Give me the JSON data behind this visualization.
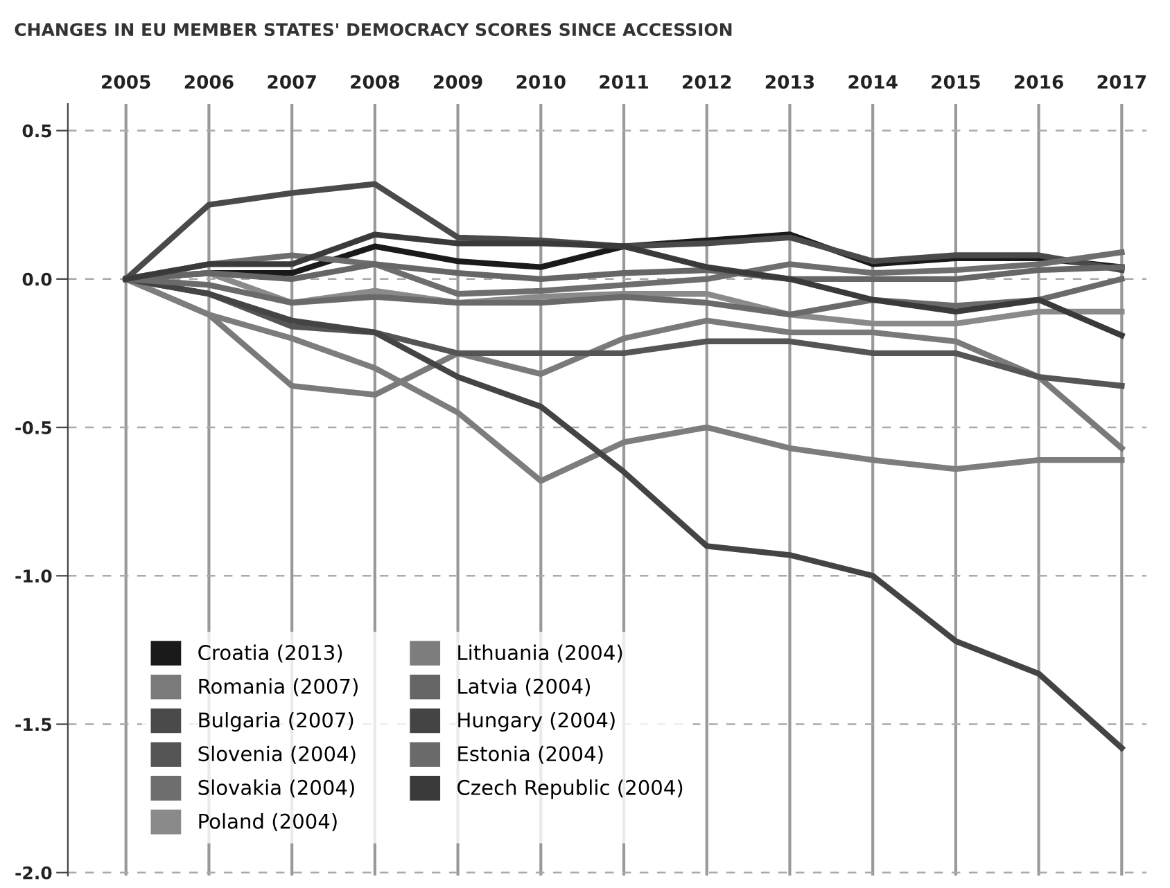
{
  "chart_data": {
    "type": "line",
    "title": "CHANGES IN EU MEMBER STATES' DEMOCRACY SCORES SINCE ACCESSION",
    "x": [
      2005,
      2006,
      2007,
      2008,
      2009,
      2010,
      2011,
      2012,
      2013,
      2014,
      2015,
      2016,
      2017
    ],
    "series": [
      {
        "name": "Croatia (2013)",
        "color": "#1a1a1a",
        "values": [
          0,
          0.02,
          0.02,
          0.11,
          0.06,
          0.04,
          0.11,
          0.13,
          0.15,
          0.05,
          0.07,
          0.07,
          0.04
        ]
      },
      {
        "name": "Romania (2007)",
        "color": "#7a7a7a",
        "values": [
          0,
          -0.12,
          -0.36,
          -0.39,
          -0.25,
          -0.32,
          -0.2,
          -0.14,
          -0.18,
          -0.18,
          -0.21,
          -0.33,
          -0.57
        ]
      },
      {
        "name": "Bulgaria (2007)",
        "color": "#4a4a4a",
        "values": [
          0,
          0.25,
          0.29,
          0.32,
          0.14,
          0.13,
          0.11,
          0.12,
          0.14,
          0.06,
          0.08,
          0.08,
          0.03
        ]
      },
      {
        "name": "Slovenia (2004)",
        "color": "#555555",
        "values": [
          0,
          -0.05,
          -0.16,
          -0.18,
          -0.25,
          -0.25,
          -0.25,
          -0.21,
          -0.21,
          -0.25,
          -0.25,
          -0.33,
          -0.36
        ]
      },
      {
        "name": "Slovakia (2004)",
        "color": "#6e6e6e",
        "values": [
          0,
          0.05,
          0.08,
          0.05,
          -0.05,
          -0.04,
          -0.02,
          0.0,
          0.05,
          0.02,
          0.03,
          0.05,
          0.09
        ]
      },
      {
        "name": "Poland (2004)",
        "color": "#8a8a8a",
        "values": [
          0,
          0.02,
          -0.08,
          -0.04,
          -0.08,
          -0.06,
          -0.05,
          -0.05,
          -0.12,
          -0.15,
          -0.15,
          -0.11,
          -0.11
        ]
      },
      {
        "name": "Lithuania (2004)",
        "color": "#7d7d7d",
        "values": [
          0,
          -0.12,
          -0.2,
          -0.3,
          -0.45,
          -0.68,
          -0.55,
          -0.5,
          -0.57,
          -0.61,
          -0.64,
          -0.61,
          -0.61
        ]
      },
      {
        "name": "Latvia (2004)",
        "color": "#666666",
        "values": [
          0,
          0.02,
          0.0,
          0.05,
          0.02,
          0.0,
          0.02,
          0.03,
          0.0,
          0.0,
          0.0,
          0.03,
          0.04
        ]
      },
      {
        "name": "Hungary (2004)",
        "color": "#444444",
        "values": [
          0,
          -0.05,
          -0.14,
          -0.18,
          -0.33,
          -0.43,
          -0.65,
          -0.9,
          -0.93,
          -1.0,
          -1.22,
          -1.33,
          -1.58
        ]
      },
      {
        "name": "Estonia (2004)",
        "color": "#6a6a6a",
        "values": [
          0,
          -0.02,
          -0.08,
          -0.06,
          -0.08,
          -0.08,
          -0.06,
          -0.08,
          -0.12,
          -0.07,
          -0.09,
          -0.07,
          0.0
        ]
      },
      {
        "name": "Czech Republic (2004)",
        "color": "#3a3a3a",
        "values": [
          0,
          0.05,
          0.05,
          0.15,
          0.12,
          0.12,
          0.11,
          0.04,
          0.0,
          -0.07,
          -0.11,
          -0.07,
          -0.19
        ]
      }
    ],
    "xlim": [
      2004.3,
      2017.3
    ],
    "xticks": [
      2005,
      2006,
      2007,
      2008,
      2009,
      2010,
      2011,
      2012,
      2013,
      2014,
      2015,
      2016,
      2017
    ],
    "ylim": [
      -2.01,
      0.59
    ],
    "yticks": [
      {
        "value": 0.5,
        "label": "0.5"
      },
      {
        "value": 0.0,
        "label": "0.0"
      },
      {
        "value": -0.5,
        "label": "-0.5"
      },
      {
        "value": -1.0,
        "label": "-1.0"
      },
      {
        "value": -1.5,
        "label": "-1.5"
      },
      {
        "value": -2.0,
        "label": "-2.0"
      }
    ],
    "grid": true,
    "legend": "bottom left",
    "marker": "none",
    "line_style": "solid"
  }
}
